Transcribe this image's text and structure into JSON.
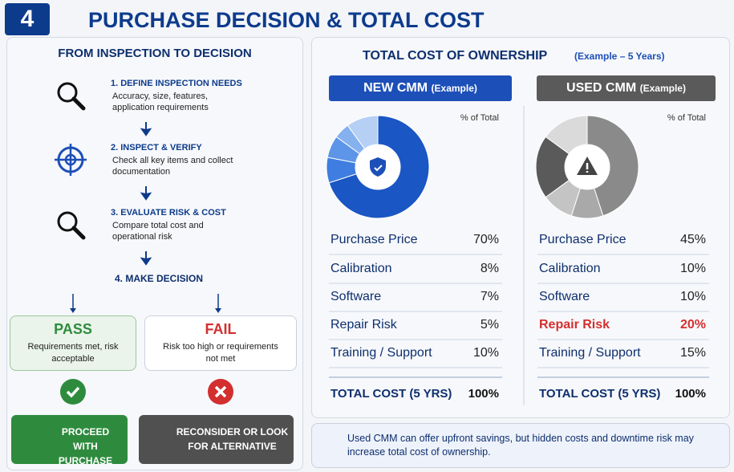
{
  "header": {
    "number": "4",
    "title": "PURCHASE DECISION & TOTAL COST"
  },
  "flow": {
    "title": "FROM INSPECTION TO DECISION",
    "steps": [
      {
        "title": "1. DEFINE INSPECTION NEEDS",
        "text": "Accuracy, size, features, application requirements"
      },
      {
        "title": "2. INSPECT & VERIFY",
        "text": "Check all key items and collect documentation"
      },
      {
        "title": "3. EVALUATE RISK & COST",
        "text": "Compare total cost and operational risk"
      }
    ],
    "decision": "4. MAKE DECISION",
    "pass": {
      "title": "PASS",
      "text": "Requirements met, risk acceptable",
      "action": "PROCEED WITH PURCHASE"
    },
    "fail": {
      "title": "FAIL",
      "text": "Risk too high or requirements not met",
      "action": "RECONSIDER OR LOOK FOR ALTERNATIVE"
    }
  },
  "tco": {
    "title": "TOTAL COST OF OWNERSHIP",
    "subtitle": "(Example – 5 Years)",
    "panels": [
      {
        "title": "NEW CMM",
        "tag": "(Example)",
        "pct_label": "% of Total",
        "items": [
          {
            "label": "Purchase Price",
            "value": 70,
            "value_label": "70%",
            "color": "#1a56c4"
          },
          {
            "label": "Calibration",
            "value": 8,
            "value_label": "8%",
            "color": "#3f7ee0"
          },
          {
            "label": "Software",
            "value": 7,
            "value_label": "7%",
            "color": "#5d95e8"
          },
          {
            "label": "Repair Risk",
            "value": 5,
            "value_label": "5%",
            "color": "#86b1ef"
          },
          {
            "label": "Training / Support",
            "value": 10,
            "value_label": "10%",
            "color": "#b5cff5"
          }
        ],
        "total_label": "TOTAL COST (5 YRS)",
        "total": "100%"
      },
      {
        "title": "USED CMM",
        "tag": "(Example)",
        "pct_label": "% of Total",
        "items": [
          {
            "label": "Purchase Price",
            "value": 45,
            "value_label": "45%",
            "color": "#8a8a8a"
          },
          {
            "label": "Calibration",
            "value": 10,
            "value_label": "10%",
            "color": "#a9a9a9"
          },
          {
            "label": "Software",
            "value": 10,
            "value_label": "10%",
            "color": "#c4c4c4"
          },
          {
            "label": "Repair Risk",
            "value": 20,
            "value_label": "20%",
            "color": "#5a5a5a",
            "text_color": "#d32f2f"
          },
          {
            "label": "Training / Support",
            "value": 15,
            "value_label": "15%",
            "color": "#dadada"
          }
        ],
        "total_label": "TOTAL COST (5 YRS)",
        "total": "100%"
      }
    ]
  },
  "note": "Used CMM can offer upfront savings, but hidden costs and downtime risk may increase total cost of ownership."
}
